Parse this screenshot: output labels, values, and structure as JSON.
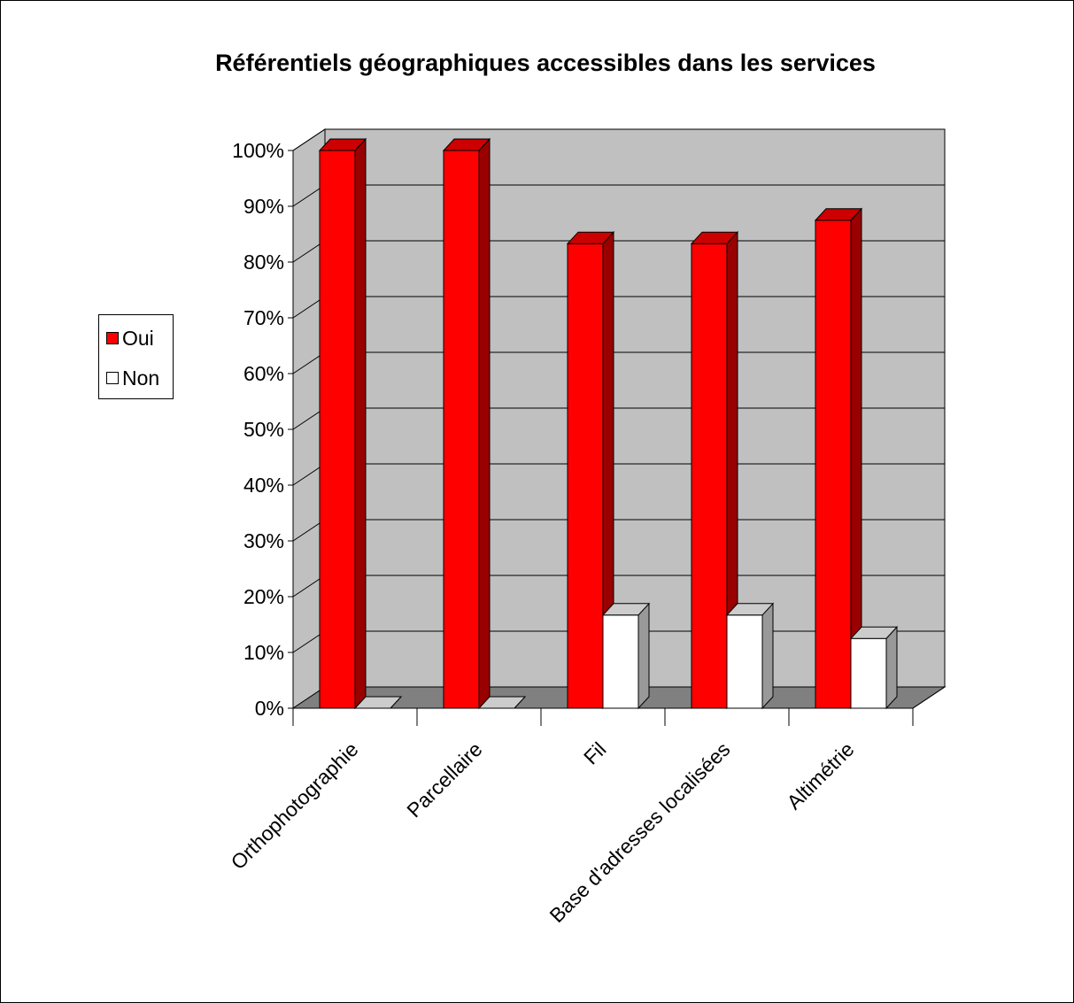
{
  "chart_data": {
    "type": "bar",
    "title": "Référentiels géographiques accessibles dans les services",
    "categories": [
      "Orthophotographie",
      "Parcellaire",
      "Fil",
      "Base d'adresses localisées",
      "Altimétrie"
    ],
    "series": [
      {
        "name": "Oui",
        "color": "#ff0000",
        "values": [
          100,
          100,
          83.3,
          83.3,
          87.5
        ]
      },
      {
        "name": "Non",
        "color": "#ffffff",
        "values": [
          0,
          0,
          16.7,
          16.7,
          12.5
        ]
      }
    ],
    "ylim": [
      0,
      100
    ],
    "yticks": [
      "0%",
      "10%",
      "20%",
      "30%",
      "40%",
      "50%",
      "60%",
      "70%",
      "80%",
      "90%",
      "100%"
    ],
    "grid": true,
    "legend_position": "left",
    "style_3d": true,
    "plot_background": "#c0c0c0",
    "floor_color": "#808080"
  }
}
